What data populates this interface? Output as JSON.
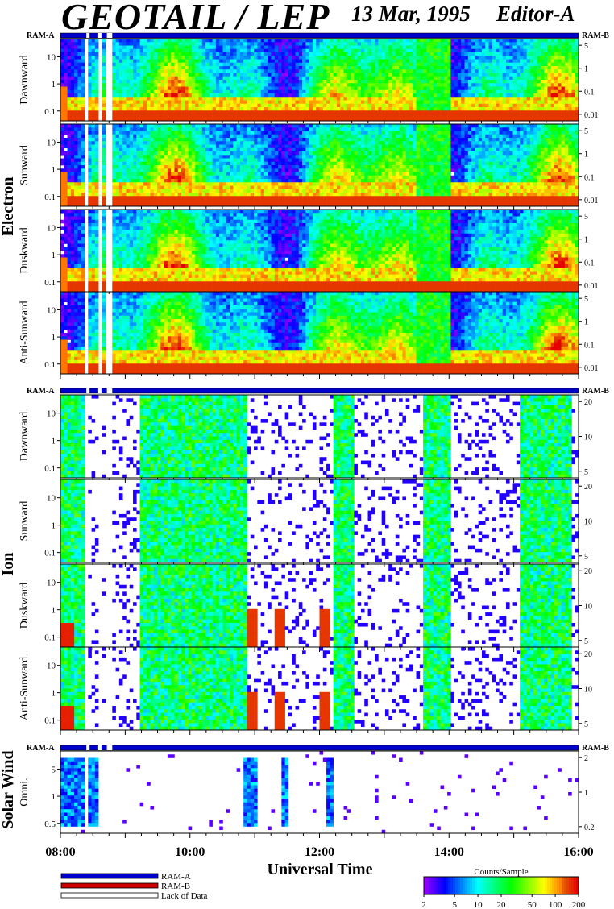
{
  "header": {
    "title": "GEOTAIL / LEP",
    "date": "13 Mar, 1995",
    "editor": "Editor-A"
  },
  "ram_labels": {
    "left": "RAM-A",
    "right": "RAM-B"
  },
  "groups": [
    {
      "name": "Electron",
      "panels": [
        "Dawnward",
        "Sunward",
        "Duskward",
        "Anti-Sunward"
      ],
      "left_ticks": [
        "10",
        "1",
        "0.1"
      ],
      "right_ticks": [
        "5",
        "1",
        "0.1",
        "0.01"
      ]
    },
    {
      "name": "Ion",
      "panels": [
        "Dawnward",
        "Sunward",
        "Duskward",
        "Anti-Sunward"
      ],
      "left_ticks": [
        "10",
        "1",
        "0.1"
      ],
      "right_ticks": [
        "20",
        "10",
        "5"
      ]
    },
    {
      "name": "Solar Wind",
      "panels": [
        "Omni."
      ],
      "left_ticks": [
        "5",
        "1",
        "0.5"
      ],
      "right_ticks": [
        "2",
        "1",
        "0.2"
      ]
    }
  ],
  "chart_data": {
    "type": "heatmap",
    "xlabel": "Universal Time",
    "x_ticks": [
      "08:00",
      "10:00",
      "12:00",
      "14:00",
      "16:00"
    ],
    "x_range": [
      "08:00",
      "16:00"
    ],
    "colorbar": {
      "title": "Counts/Sample",
      "ticks": [
        "2",
        "5",
        "10",
        "20",
        "50",
        "100",
        "200"
      ],
      "range": [
        2,
        200
      ],
      "scale": "log"
    },
    "legend": [
      {
        "label": "RAM-A",
        "color": "#0000cc"
      },
      {
        "label": "RAM-B",
        "color": "#cc0000"
      },
      {
        "label": "Lack of Data",
        "color": "#ffffff"
      }
    ],
    "data_gaps_ut": [
      [
        "08:24",
        "08:27"
      ],
      [
        "08:35",
        "08:38"
      ],
      [
        "08:43",
        "08:48"
      ]
    ]
  }
}
